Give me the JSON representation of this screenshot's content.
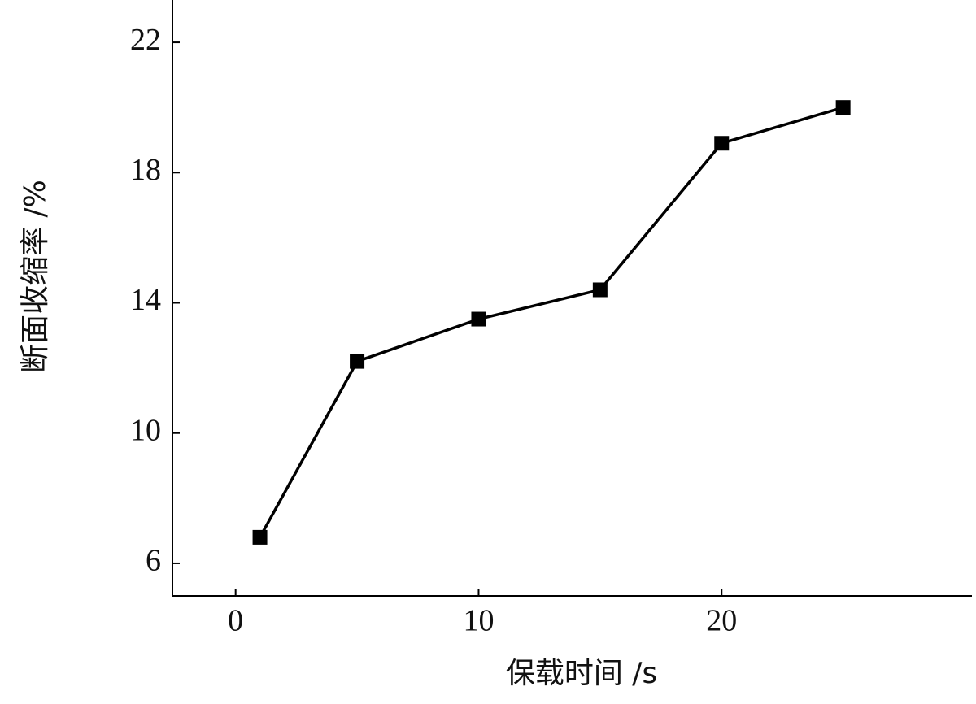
{
  "chart_data": {
    "type": "line",
    "x_label": "保载时间 /s",
    "y_label": "断面收缩率 /%",
    "x": [
      1,
      5,
      10,
      15,
      20,
      25
    ],
    "series": [
      {
        "color": "#000000",
        "values": [
          6.8,
          12.2,
          13.5,
          14.4,
          18.9,
          20
        ]
      }
    ],
    "xlim": [
      -2.6,
      30.3
    ],
    "xticks": [
      0,
      10,
      20
    ],
    "ylim": [
      5,
      23.3
    ],
    "yticks": [
      6,
      10,
      14,
      18,
      22
    ],
    "grid": false
  }
}
